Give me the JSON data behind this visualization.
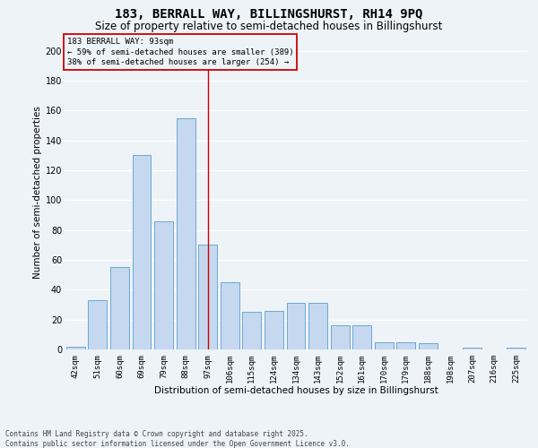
{
  "title_line1": "183, BERRALL WAY, BILLINGSHURST, RH14 9PQ",
  "title_line2": "Size of property relative to semi-detached houses in Billingshurst",
  "xlabel": "Distribution of semi-detached houses by size in Billingshurst",
  "ylabel": "Number of semi-detached properties",
  "categories": [
    "42sqm",
    "51sqm",
    "60sqm",
    "69sqm",
    "79sqm",
    "88sqm",
    "97sqm",
    "106sqm",
    "115sqm",
    "124sqm",
    "134sqm",
    "143sqm",
    "152sqm",
    "161sqm",
    "170sqm",
    "179sqm",
    "188sqm",
    "198sqm",
    "207sqm",
    "216sqm",
    "225sqm"
  ],
  "values": [
    2,
    33,
    55,
    130,
    86,
    155,
    70,
    45,
    25,
    26,
    31,
    31,
    16,
    16,
    5,
    5,
    4,
    0,
    1,
    0,
    1
  ],
  "bar_color": "#c5d8ef",
  "bar_edge_color": "#6aaad4",
  "vline_x_index": 6,
  "vline_color": "#cc0000",
  "annotation_title": "183 BERRALL WAY: 93sqm",
  "annotation_line1": "← 59% of semi-detached houses are smaller (389)",
  "annotation_line2": "38% of semi-detached houses are larger (254) →",
  "annotation_box_edgecolor": "#cc0000",
  "ylim_max": 210,
  "yticks": [
    0,
    20,
    40,
    60,
    80,
    100,
    120,
    140,
    160,
    180,
    200
  ],
  "footnote_line1": "Contains HM Land Registry data © Crown copyright and database right 2025.",
  "footnote_line2": "Contains public sector information licensed under the Open Government Licence v3.0.",
  "bg_color": "#eef3f8",
  "grid_color": "#ffffff"
}
